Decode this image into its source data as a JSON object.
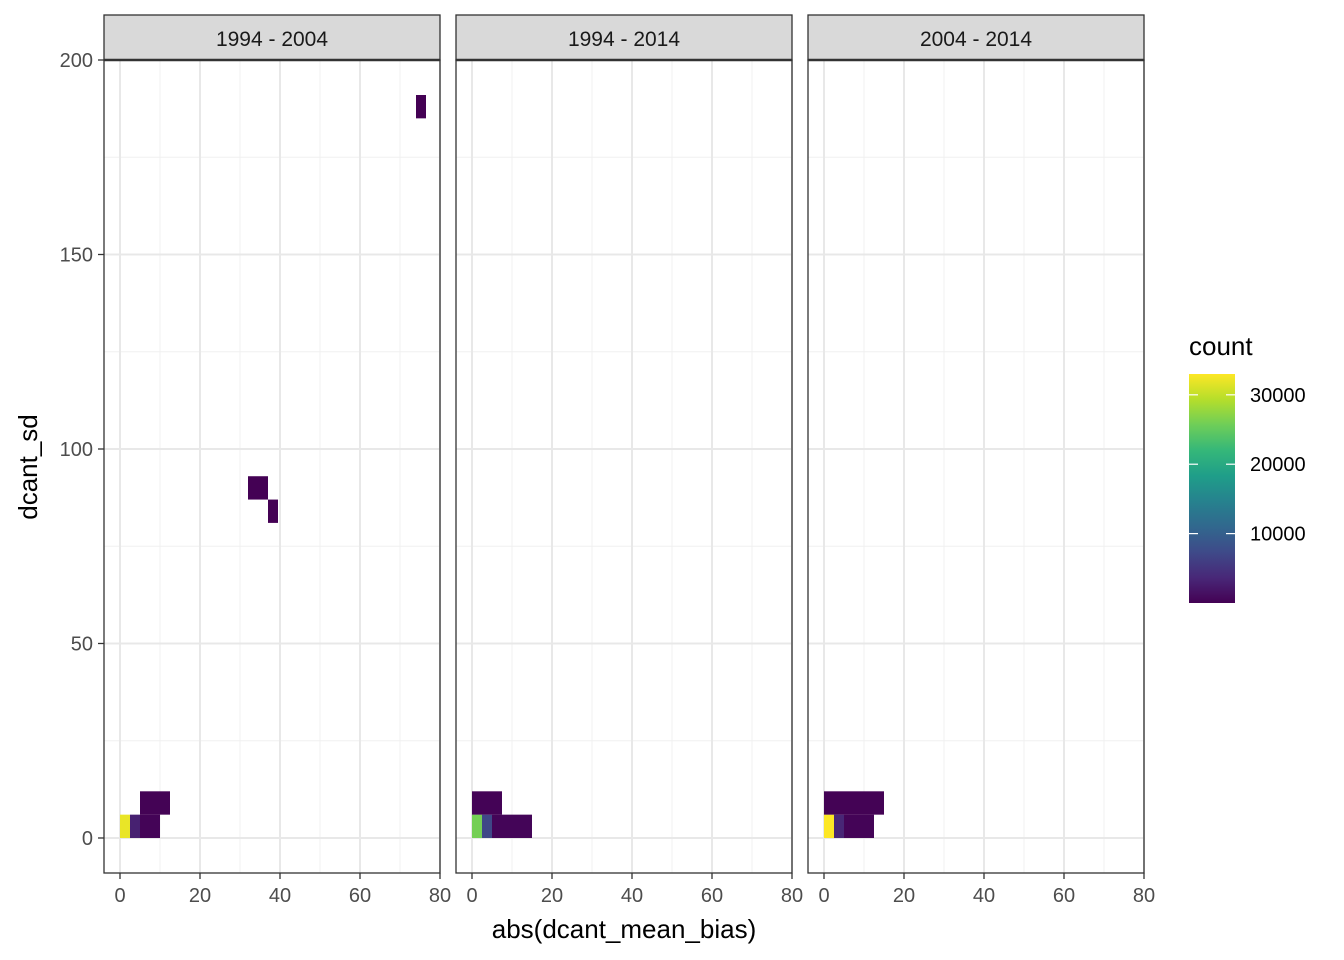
{
  "chart_data": {
    "type": "heatmap",
    "xlabel": "abs(dcant_mean_bias)",
    "ylabel": "dcant_sd",
    "xlim": [
      -4,
      80
    ],
    "ylim": [
      -9,
      200
    ],
    "x_ticks": [
      0,
      20,
      40,
      60,
      80
    ],
    "y_ticks": [
      0,
      50,
      100,
      150,
      200
    ],
    "grid": true,
    "legend": {
      "title": "count",
      "position": "right",
      "ticks": [
        10000,
        20000,
        30000
      ],
      "range": [
        1,
        33000
      ],
      "colors": [
        "#440154",
        "#482878",
        "#3e4a89",
        "#31688e",
        "#26828e",
        "#1f9e89",
        "#35b779",
        "#6ece58",
        "#b5de2b",
        "#fde725"
      ]
    },
    "panels": [
      {
        "label": "1994 - 2004",
        "cells": [
          {
            "x0": 0,
            "x1": 2.5,
            "y0": 0,
            "y1": 6,
            "count": 32000
          },
          {
            "x0": 2.5,
            "x1": 5,
            "y0": 0,
            "y1": 6,
            "count": 3000
          },
          {
            "x0": 5,
            "x1": 10,
            "y0": 0,
            "y1": 6,
            "count": 300
          },
          {
            "x0": 5,
            "x1": 12.5,
            "y0": 6,
            "y1": 12,
            "count": 150
          },
          {
            "x0": 32,
            "x1": 37,
            "y0": 87,
            "y1": 93,
            "count": 5
          },
          {
            "x0": 37,
            "x1": 39.5,
            "y0": 81,
            "y1": 87,
            "count": 3
          },
          {
            "x0": 74,
            "x1": 76.5,
            "y0": 185,
            "y1": 191,
            "count": 2
          }
        ]
      },
      {
        "label": "1994 - 2014",
        "cells": [
          {
            "x0": 0,
            "x1": 2.5,
            "y0": 0,
            "y1": 6,
            "count": 26000
          },
          {
            "x0": 2.5,
            "x1": 5,
            "y0": 0,
            "y1": 6,
            "count": 7000
          },
          {
            "x0": 5,
            "x1": 15,
            "y0": 0,
            "y1": 6,
            "count": 400
          },
          {
            "x0": 0,
            "x1": 7.5,
            "y0": 6,
            "y1": 12,
            "count": 200
          }
        ]
      },
      {
        "label": "2004 - 2014",
        "cells": [
          {
            "x0": 0,
            "x1": 2.5,
            "y0": 0,
            "y1": 6,
            "count": 33000
          },
          {
            "x0": 2.5,
            "x1": 5,
            "y0": 0,
            "y1": 6,
            "count": 3500
          },
          {
            "x0": 5,
            "x1": 12.5,
            "y0": 0,
            "y1": 6,
            "count": 300
          },
          {
            "x0": 0,
            "x1": 15,
            "y0": 6,
            "y1": 12,
            "count": 150
          }
        ]
      }
    ]
  }
}
